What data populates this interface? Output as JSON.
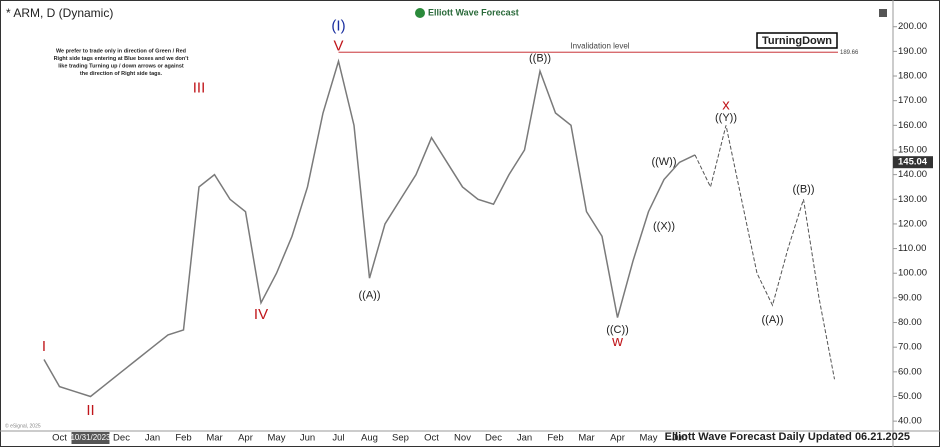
{
  "chart_data": {
    "type": "line",
    "title": "* ARM, D (Dynamic)",
    "logo": "Elliott Wave Forecast",
    "footer": "Elliott Wave Forecast Daily Updated 06.21.2025",
    "copyright": "© eSignal, 2025",
    "note": [
      "We prefer to trade only in direction of Green / Red",
      "Right side tags entering at Blue boxes and we don't",
      "like trading Turning up / down arrows or against",
      "the direction of Right side tags."
    ],
    "tag": "TurningDown",
    "categories": [
      null,
      "Oct",
      null,
      "10/31/2023",
      null,
      "Dec",
      null,
      "Jan",
      null,
      "Feb",
      null,
      "Mar",
      null,
      "Apr",
      null,
      "May",
      null,
      "Jun",
      null,
      "Jul",
      null,
      "Aug",
      null,
      "Sep",
      null,
      "Oct",
      null,
      "Nov",
      null,
      "Dec",
      null,
      "Jan",
      null,
      "Feb",
      null,
      "Mar",
      null,
      "Apr",
      null,
      "May",
      null,
      "Jun",
      null,
      null,
      null,
      null,
      null,
      null,
      null,
      null,
      null,
      null
    ],
    "series": [
      {
        "color": "#7a7a7a",
        "values": [
          65,
          54,
          52,
          50,
          55,
          60,
          65,
          70,
          75,
          77,
          135,
          140,
          130,
          125,
          88,
          100,
          115,
          135,
          165,
          186,
          160,
          98,
          120,
          130,
          140,
          155,
          145,
          135,
          130,
          128,
          140,
          150,
          182,
          165,
          160,
          125,
          115,
          82,
          105,
          125,
          138,
          145,
          148,
          null,
          null,
          null,
          null,
          null,
          null,
          null,
          null,
          null
        ]
      },
      {
        "color": "#555555",
        "dashed": true,
        "values": [
          null,
          null,
          null,
          null,
          null,
          null,
          null,
          null,
          null,
          null,
          null,
          null,
          null,
          null,
          null,
          null,
          null,
          null,
          null,
          null,
          null,
          null,
          null,
          null,
          null,
          null,
          null,
          null,
          null,
          null,
          null,
          null,
          null,
          null,
          null,
          null,
          null,
          null,
          null,
          null,
          null,
          null,
          148,
          135,
          160,
          130,
          100,
          87,
          110,
          130,
          90,
          57
        ]
      }
    ],
    "annotations": [
      {
        "label": "I",
        "x": 0,
        "y": 70,
        "color": "#c0161b"
      },
      {
        "label": "II",
        "x": 3,
        "y": 44,
        "color": "#c0161b"
      },
      {
        "label": "III",
        "x": 10,
        "y": 175,
        "color": "#c0161b"
      },
      {
        "label": "IV",
        "x": 14,
        "y": 83,
        "color": "#c0161b"
      },
      {
        "label": "V",
        "x": 19,
        "y": 192,
        "color": "#c0161b"
      },
      {
        "label": "(I)",
        "x": 19,
        "y": 200,
        "color": "#1a2fa0"
      },
      {
        "label": "((A))",
        "x": 21,
        "y": 91,
        "color": "#222222"
      },
      {
        "label": "((B))",
        "x": 32,
        "y": 187,
        "color": "#222222"
      },
      {
        "label": "((C))",
        "x": 37,
        "y": 77,
        "color": "#222222"
      },
      {
        "label": "w",
        "x": 37,
        "y": 72,
        "color": "#c0161b"
      },
      {
        "label": "((W))",
        "x": 40,
        "y": 145,
        "color": "#222222"
      },
      {
        "label": "((X))",
        "x": 40,
        "y": 119,
        "color": "#222222"
      },
      {
        "label": "x",
        "x": 44,
        "y": 168,
        "color": "#c0161b"
      },
      {
        "label": "((Y))",
        "x": 44,
        "y": 163,
        "color": "#222222"
      },
      {
        "label": "((A))",
        "x": 47,
        "y": 81,
        "color": "#222222"
      },
      {
        "label": "((B))",
        "x": 49,
        "y": 134,
        "color": "#222222"
      }
    ],
    "invalidation": {
      "label": "Invalidation level",
      "value": 189.66,
      "start": 19,
      "color": "#c0161b"
    },
    "last_price": 145.04,
    "ylim": [
      36,
      208
    ],
    "yticks": [
      {
        "value": 40,
        "label": "40.00"
      },
      {
        "value": 50,
        "label": "50.00"
      },
      {
        "value": 60,
        "label": "60.00"
      },
      {
        "value": 70,
        "label": "70.00"
      },
      {
        "value": 80,
        "label": "80.00"
      },
      {
        "value": 90,
        "label": "90.00"
      },
      {
        "value": 100,
        "label": "100.00"
      },
      {
        "value": 110,
        "label": "110.00"
      },
      {
        "value": 120,
        "label": "120.00"
      },
      {
        "value": 130,
        "label": "130.00"
      },
      {
        "value": 140,
        "label": "140.00"
      },
      {
        "value": 150,
        "label": "150.00"
      },
      {
        "value": 160,
        "label": "160.00"
      },
      {
        "value": 170,
        "label": "170.00"
      },
      {
        "value": 180,
        "label": "180.00"
      },
      {
        "value": 190,
        "label": "190.00"
      },
      {
        "value": 200,
        "label": "200.00"
      }
    ]
  }
}
